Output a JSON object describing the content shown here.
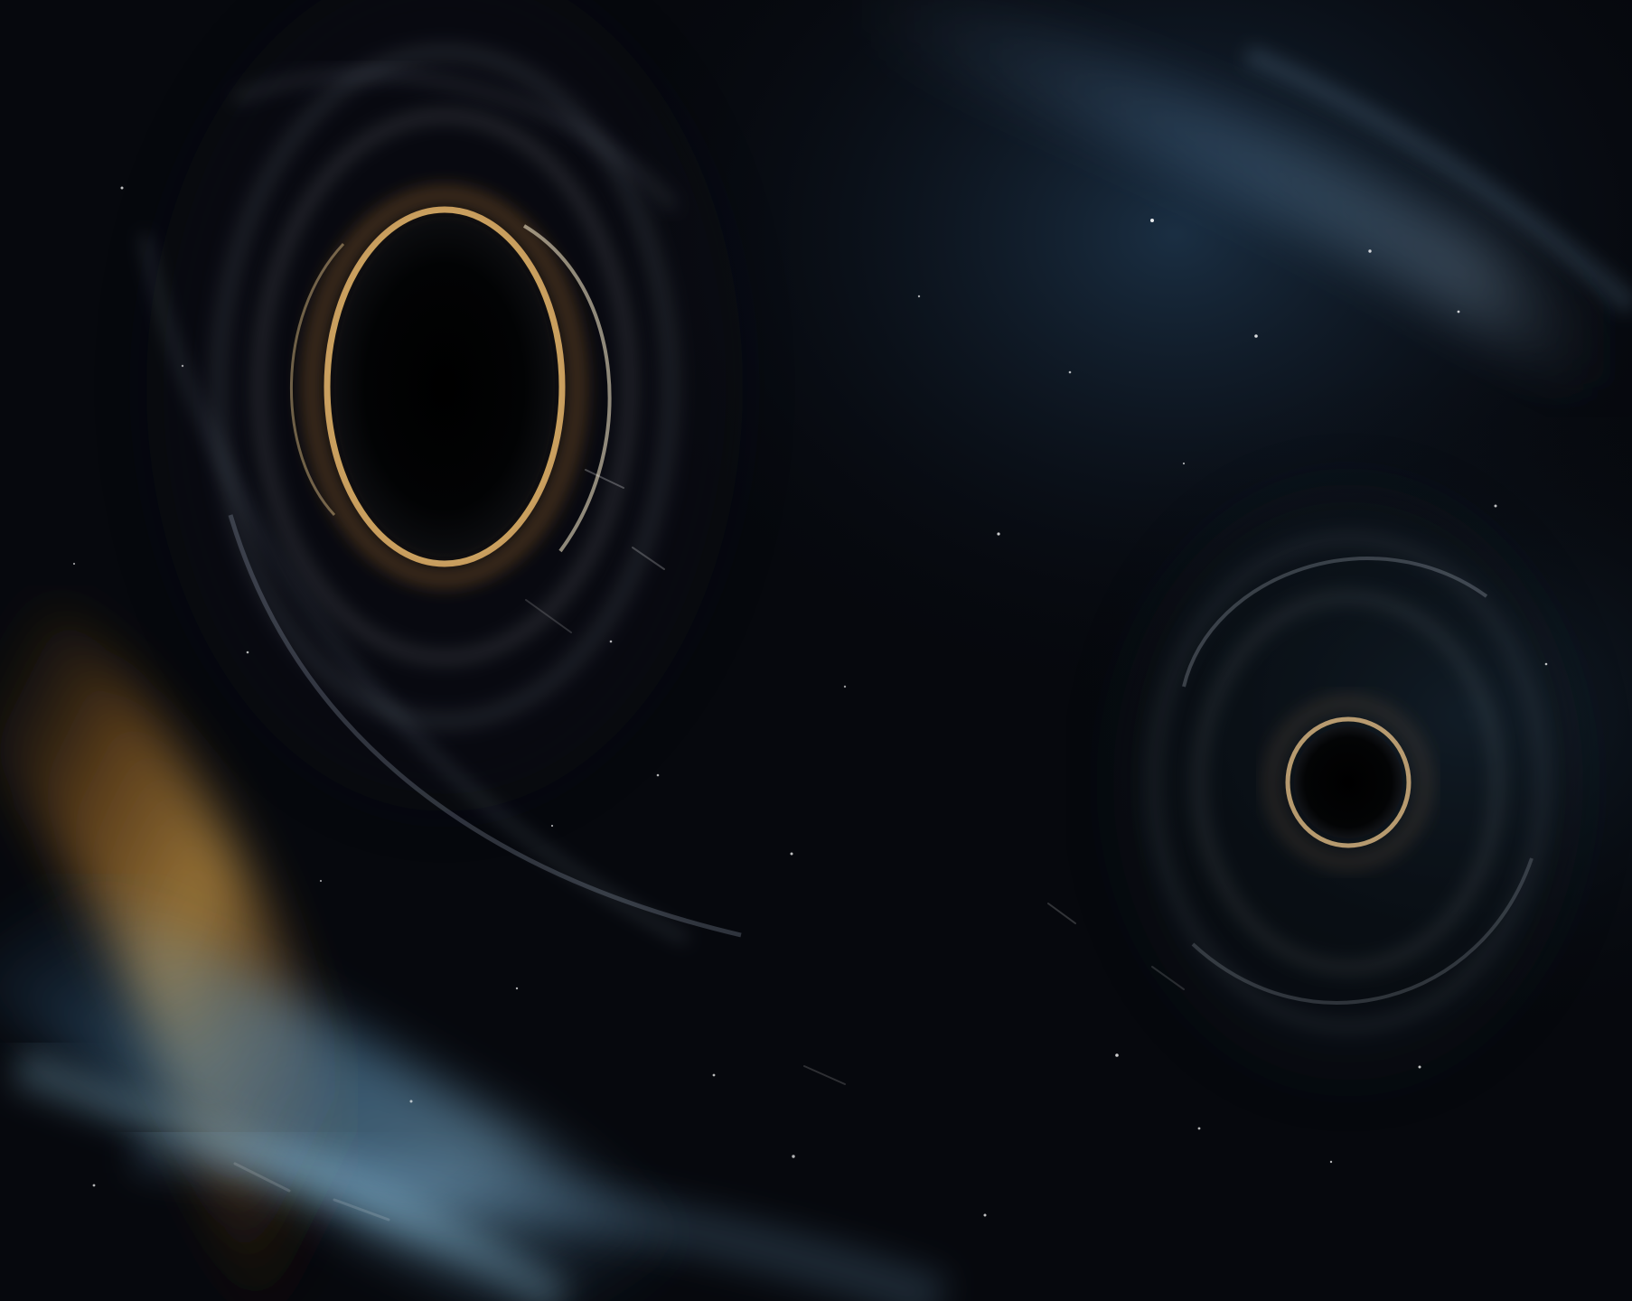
{
  "image": {
    "colors": {
      "background": "#05070c",
      "accent_purple": "#4a1c73",
      "accent_blue": "#1d56c1",
      "gold": "#d7a24a",
      "ice_blue": "#8ac8ff"
    }
  }
}
